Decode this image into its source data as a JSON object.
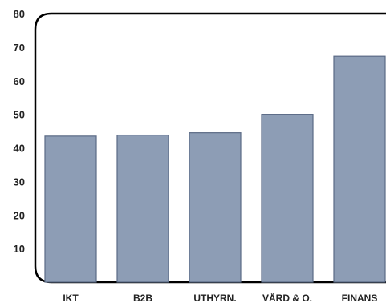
{
  "chart_data": {
    "type": "bar",
    "categories": [
      "IKT",
      "B2B",
      "UTHYRN.",
      "VÅRD & O.",
      "FINANS"
    ],
    "values": [
      43.5,
      43.8,
      44.5,
      50.0,
      67.3
    ],
    "ylim": [
      0,
      80
    ],
    "yticks": [
      "80",
      "70",
      "60",
      "50",
      "40",
      "30",
      "20",
      "10"
    ],
    "grid": false,
    "colors": {
      "bar_fill": "#8d9db5",
      "bar_stroke": "#5b6a85",
      "axis": "#000000"
    }
  }
}
